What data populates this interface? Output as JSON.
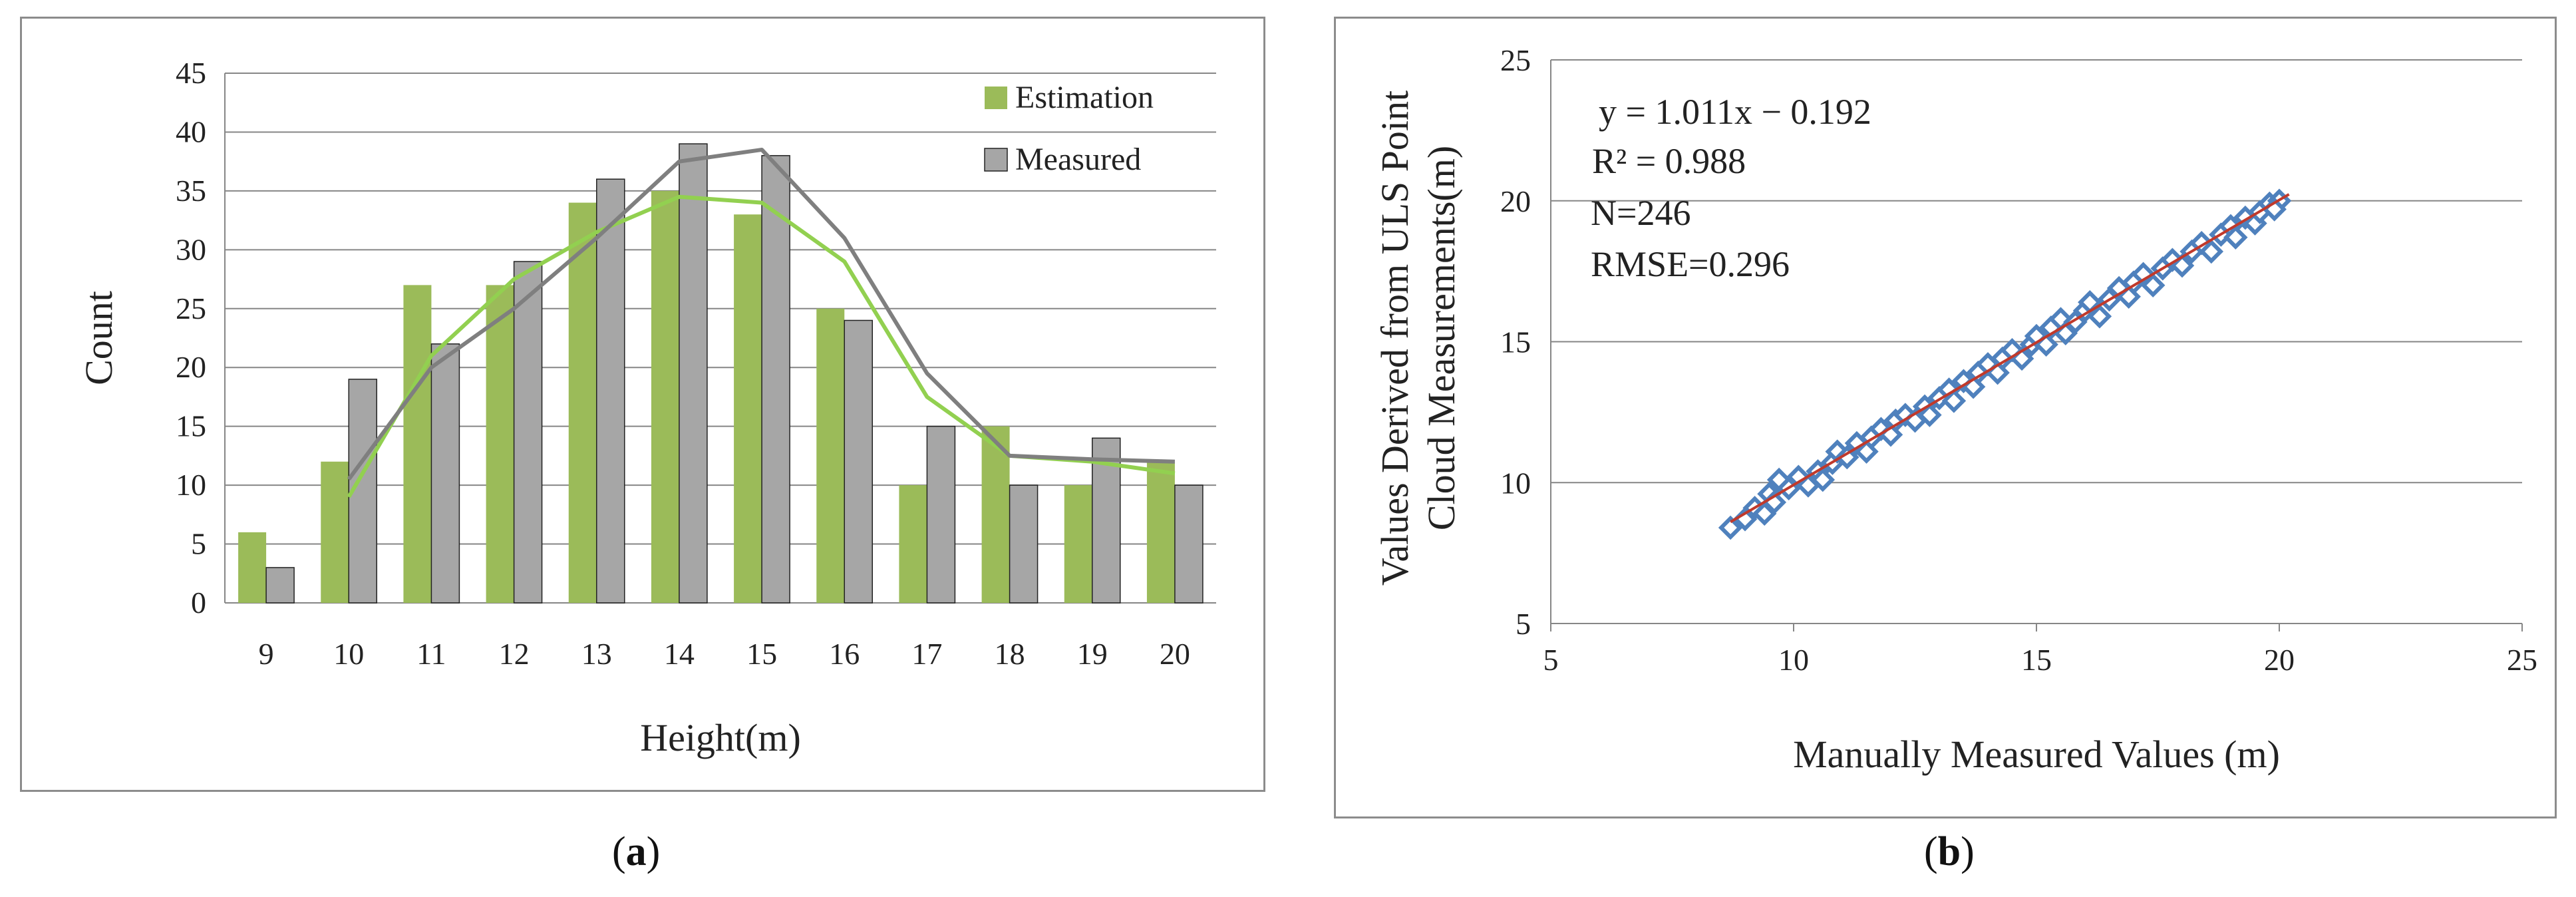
{
  "panels": {
    "a": {
      "open": "(",
      "letter": "a",
      "close": ")"
    },
    "b": {
      "open": "(",
      "letter": "b",
      "close": ")"
    }
  },
  "colors": {
    "estimation_bar": "#9bbb59",
    "measured_bar": "#a6a6a6",
    "estimation_line": "#92d050",
    "measured_line": "#7f7f7f",
    "scatter_marker": "#4f81bd",
    "fit_line": "#c0392b",
    "grid": "#868686"
  },
  "chart_data": [
    {
      "type": "bar",
      "title": "",
      "xlabel": "Height(m)",
      "ylabel": "Count",
      "categories": [
        "9",
        "10",
        "11",
        "12",
        "13",
        "14",
        "15",
        "16",
        "17",
        "18",
        "19",
        "20"
      ],
      "series": [
        {
          "name": "Estimation",
          "values": [
            6,
            12,
            27,
            27,
            34,
            35,
            33,
            25,
            10,
            15,
            10,
            12
          ]
        },
        {
          "name": "Measured",
          "values": [
            3,
            19,
            22,
            29,
            36,
            39,
            38,
            24,
            15,
            10,
            14,
            10
          ]
        }
      ],
      "trendlines": [
        {
          "name": "Estimation",
          "values": [
            null,
            9,
            21,
            27.5,
            31.5,
            34.5,
            34,
            29,
            17.5,
            12.5,
            12,
            11
          ]
        },
        {
          "name": "Measured",
          "values": [
            null,
            10.5,
            20,
            25,
            31,
            37.5,
            38.5,
            31,
            19.5,
            12.5,
            12.2,
            12
          ]
        }
      ],
      "ylim": [
        0,
        45
      ],
      "yticks": [
        "0",
        "5",
        "10",
        "15",
        "20",
        "25",
        "30",
        "35",
        "40",
        "45"
      ],
      "legend": {
        "position": "top-right",
        "entries": [
          "Estimation",
          "Measured"
        ]
      },
      "grid": true
    },
    {
      "type": "scatter",
      "title": "",
      "xlabel": "Manually Measured Values (m)",
      "ylabel_lines": [
        "Values Derived from ULS Point",
        "Cloud Measurements(m)"
      ],
      "xlim": [
        5,
        25
      ],
      "ylim": [
        5,
        25
      ],
      "xticks": [
        "5",
        "10",
        "15",
        "20",
        "25"
      ],
      "yticks": [
        "5",
        "10",
        "15",
        "20",
        "25"
      ],
      "annotations": [
        "y = 1.011x − 0.192",
        "R² = 0.988",
        "N=246",
        "RMSE=0.296"
      ],
      "fit": {
        "slope": 1.011,
        "intercept": -0.192,
        "x_range": [
          8.7,
          20.2
        ]
      },
      "points": [
        [
          8.7,
          8.4
        ],
        [
          9.0,
          8.7
        ],
        [
          9.2,
          9.1
        ],
        [
          9.4,
          8.9
        ],
        [
          9.5,
          9.6
        ],
        [
          9.6,
          9.3
        ],
        [
          9.7,
          10.1
        ],
        [
          9.9,
          9.8
        ],
        [
          10.1,
          10.2
        ],
        [
          10.3,
          9.9
        ],
        [
          10.5,
          10.4
        ],
        [
          10.6,
          10.1
        ],
        [
          10.8,
          10.7
        ],
        [
          10.9,
          11.1
        ],
        [
          11.1,
          10.9
        ],
        [
          11.3,
          11.4
        ],
        [
          11.5,
          11.1
        ],
        [
          11.6,
          11.6
        ],
        [
          11.8,
          11.9
        ],
        [
          12.0,
          11.7
        ],
        [
          12.1,
          12.2
        ],
        [
          12.3,
          12.4
        ],
        [
          12.5,
          12.2
        ],
        [
          12.7,
          12.7
        ],
        [
          12.8,
          12.4
        ],
        [
          13.0,
          13.0
        ],
        [
          13.2,
          13.3
        ],
        [
          13.3,
          12.9
        ],
        [
          13.5,
          13.6
        ],
        [
          13.7,
          13.4
        ],
        [
          13.8,
          13.9
        ],
        [
          14.0,
          14.2
        ],
        [
          14.2,
          13.9
        ],
        [
          14.3,
          14.4
        ],
        [
          14.5,
          14.7
        ],
        [
          14.7,
          14.4
        ],
        [
          14.9,
          14.9
        ],
        [
          15.0,
          15.2
        ],
        [
          15.2,
          14.9
        ],
        [
          15.3,
          15.5
        ],
        [
          15.5,
          15.8
        ],
        [
          15.6,
          15.3
        ],
        [
          15.8,
          15.7
        ],
        [
          16.0,
          16.1
        ],
        [
          16.1,
          16.4
        ],
        [
          16.3,
          15.9
        ],
        [
          16.5,
          16.5
        ],
        [
          16.7,
          16.9
        ],
        [
          16.9,
          16.6
        ],
        [
          17.0,
          17.1
        ],
        [
          17.2,
          17.4
        ],
        [
          17.4,
          17.0
        ],
        [
          17.6,
          17.6
        ],
        [
          17.8,
          17.9
        ],
        [
          18.0,
          17.7
        ],
        [
          18.2,
          18.2
        ],
        [
          18.4,
          18.5
        ],
        [
          18.6,
          18.2
        ],
        [
          18.8,
          18.8
        ],
        [
          19.0,
          19.1
        ],
        [
          19.1,
          18.7
        ],
        [
          19.3,
          19.4
        ],
        [
          19.5,
          19.2
        ],
        [
          19.6,
          19.6
        ],
        [
          19.8,
          19.9
        ],
        [
          20.0,
          20.0
        ],
        [
          19.9,
          19.7
        ]
      ],
      "grid": true
    }
  ]
}
